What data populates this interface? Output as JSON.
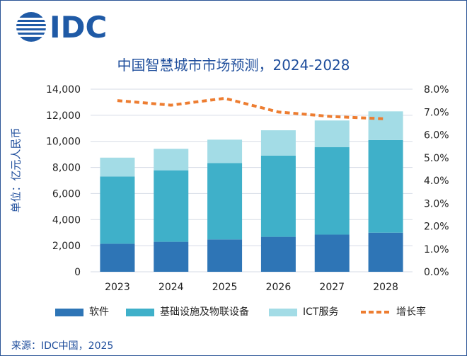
{
  "brand": {
    "logo_text": "IDC"
  },
  "colors": {
    "software": "#2e75b6",
    "infra": "#3fb0c9",
    "ict": "#a3dce6",
    "growth": "#ed7d31",
    "grid": "#d6dbe6",
    "text": "#1f4e9c"
  },
  "chart_data": {
    "type": "bar",
    "stacked": true,
    "title": "中国智慧城市市场预测，2024-2028",
    "ylabel": "单位：亿元人民币",
    "categories": [
      "2023",
      "2024",
      "2025",
      "2026",
      "2027",
      "2028"
    ],
    "series": [
      {
        "name": "软件",
        "values": [
          2150,
          2300,
          2480,
          2680,
          2850,
          3000
        ]
      },
      {
        "name": "基础设施及物联设备",
        "values": [
          5150,
          5480,
          5850,
          6220,
          6700,
          7100
        ]
      },
      {
        "name": "ICT服务",
        "values": [
          1450,
          1650,
          1800,
          1950,
          2050,
          2200
        ]
      }
    ],
    "line_series": {
      "name": "增长率",
      "axis": "right",
      "values": [
        7.5,
        7.3,
        7.6,
        7.0,
        6.8,
        6.7
      ],
      "unit": "%"
    },
    "ylim": [
      0,
      14000
    ],
    "yticks": [
      "0",
      "2,000",
      "4,000",
      "6,000",
      "8,000",
      "10,000",
      "12,000",
      "14,000"
    ],
    "y2lim": [
      0,
      8
    ],
    "y2ticks": [
      "0.0%",
      "1.0%",
      "2.0%",
      "3.0%",
      "4.0%",
      "5.0%",
      "6.0%",
      "7.0%",
      "8.0%"
    ],
    "grid": true,
    "legend_position": "bottom"
  },
  "source": "来源：IDC中国，2025"
}
